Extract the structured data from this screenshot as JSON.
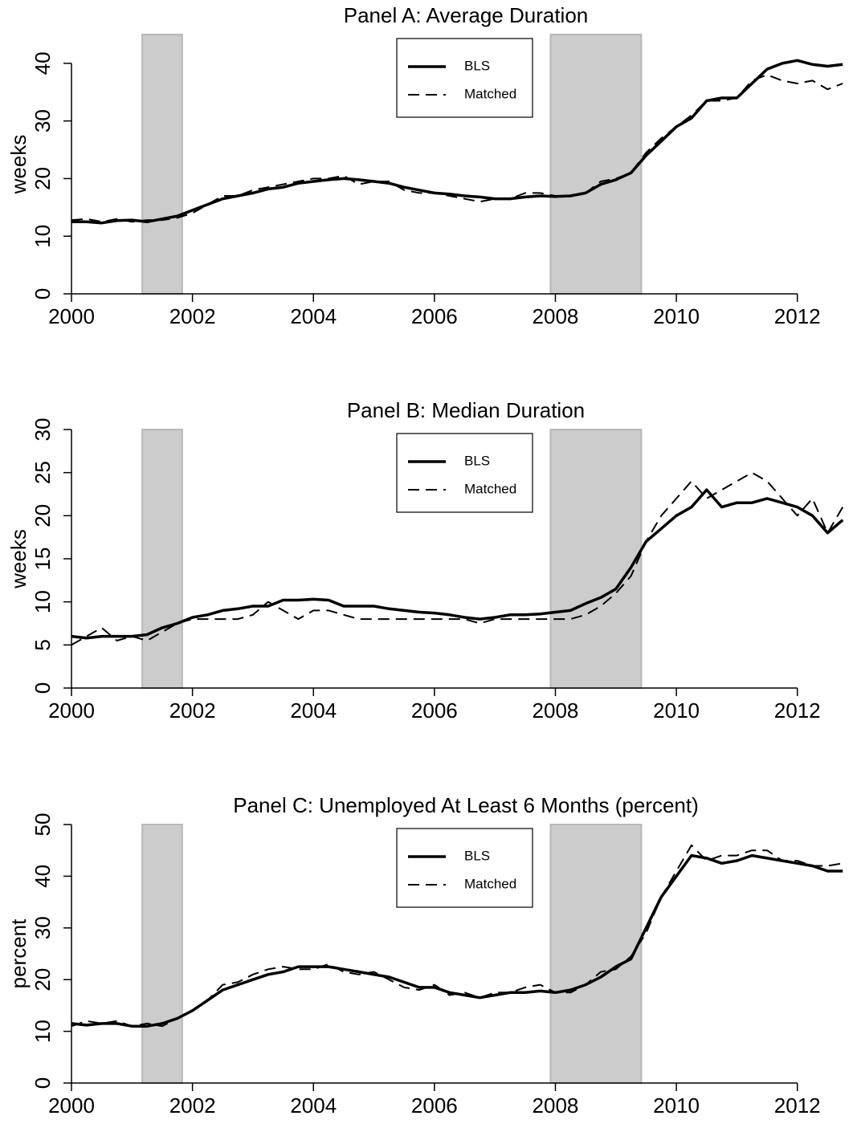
{
  "chart_data": [
    {
      "type": "line",
      "title": "Panel A:  Average Duration",
      "ylabel": "weeks",
      "x": [
        2000,
        2000.25,
        2000.5,
        2000.75,
        2001,
        2001.25,
        2001.5,
        2001.75,
        2002,
        2002.25,
        2002.5,
        2002.75,
        2003,
        2003.25,
        2003.5,
        2003.75,
        2004,
        2004.25,
        2004.5,
        2004.75,
        2005,
        2005.25,
        2005.5,
        2005.75,
        2006,
        2006.25,
        2006.5,
        2006.75,
        2007,
        2007.25,
        2007.5,
        2007.75,
        2008,
        2008.25,
        2008.5,
        2008.75,
        2009,
        2009.25,
        2009.5,
        2009.75,
        2010,
        2010.25,
        2010.5,
        2010.75,
        2011,
        2011.25,
        2011.5,
        2011.75,
        2012,
        2012.25,
        2012.5,
        2012.75
      ],
      "series": [
        {
          "name": "BLS",
          "color": "#000000",
          "dash": false,
          "values": [
            12.5,
            12.5,
            12.3,
            12.7,
            12.8,
            12.5,
            13,
            13.5,
            14.5,
            15.5,
            16.5,
            17,
            17.5,
            18.2,
            18.5,
            19.2,
            19.5,
            19.8,
            20,
            19.8,
            19.5,
            19.2,
            18.5,
            18,
            17.5,
            17.3,
            17,
            16.8,
            16.5,
            16.5,
            16.8,
            17,
            16.9,
            17,
            17.5,
            19,
            19.8,
            21,
            24,
            26.5,
            29,
            30.5,
            33.5,
            34,
            34,
            36.5,
            39,
            40,
            40.5,
            39.8,
            39.5,
            39.8
          ]
        },
        {
          "name": "Matched",
          "color": "#000000",
          "dash": true,
          "values": [
            12.8,
            13,
            12.5,
            13,
            12.5,
            12.8,
            12.8,
            13.2,
            14,
            15.5,
            17,
            17,
            18,
            18.5,
            19,
            19.5,
            20,
            20,
            20.5,
            19,
            19.5,
            19.5,
            18,
            17.5,
            17.5,
            17,
            16.5,
            16,
            16.5,
            16.5,
            17.5,
            17.5,
            17,
            17,
            17.5,
            19.5,
            20,
            21,
            24.5,
            27,
            29,
            31,
            33.5,
            33.5,
            34,
            37,
            38,
            37,
            36.5,
            37,
            35.5,
            36.5
          ]
        }
      ],
      "recessions": [
        [
          2001.17,
          2001.83
        ],
        [
          2007.92,
          2009.42
        ]
      ],
      "xlim": [
        2000,
        2012.92
      ],
      "xticks": [
        2000,
        2002,
        2004,
        2006,
        2008,
        2010,
        2012
      ],
      "ylim": [
        0,
        45
      ],
      "yticks": [
        0,
        10,
        20,
        30,
        40
      ]
    },
    {
      "type": "line",
      "title": "Panel B:  Median Duration",
      "ylabel": "weeks",
      "x": [
        2000,
        2000.25,
        2000.5,
        2000.75,
        2001,
        2001.25,
        2001.5,
        2001.75,
        2002,
        2002.25,
        2002.5,
        2002.75,
        2003,
        2003.25,
        2003.5,
        2003.75,
        2004,
        2004.25,
        2004.5,
        2004.75,
        2005,
        2005.25,
        2005.5,
        2005.75,
        2006,
        2006.25,
        2006.5,
        2006.75,
        2007,
        2007.25,
        2007.5,
        2007.75,
        2008,
        2008.25,
        2008.5,
        2008.75,
        2009,
        2009.25,
        2009.5,
        2009.75,
        2010,
        2010.25,
        2010.5,
        2010.75,
        2011,
        2011.25,
        2011.5,
        2011.75,
        2012,
        2012.25,
        2012.5,
        2012.75
      ],
      "series": [
        {
          "name": "BLS",
          "color": "#000000",
          "dash": false,
          "values": [
            6,
            5.8,
            6,
            6,
            6,
            6.2,
            7,
            7.5,
            8.2,
            8.5,
            9,
            9.2,
            9.5,
            9.5,
            10.2,
            10.2,
            10.3,
            10.2,
            9.5,
            9.5,
            9.5,
            9.2,
            9,
            8.8,
            8.7,
            8.5,
            8.2,
            8,
            8.2,
            8.5,
            8.5,
            8.6,
            8.8,
            9,
            9.8,
            10.5,
            11.5,
            14,
            17,
            18.5,
            20,
            21,
            23,
            21,
            21.5,
            21.5,
            22,
            21.5,
            21,
            20,
            18,
            19.5
          ]
        },
        {
          "name": "Matched",
          "color": "#000000",
          "dash": true,
          "values": [
            5,
            6,
            7,
            5.5,
            6,
            5.5,
            6.5,
            7.5,
            8,
            8,
            8,
            8,
            8.5,
            10,
            9,
            8,
            9,
            9,
            8.5,
            8,
            8,
            8,
            8,
            8,
            8,
            8,
            8,
            7.5,
            8,
            8,
            8,
            8,
            8,
            8,
            8.5,
            9.5,
            11,
            13,
            17,
            20,
            22,
            24,
            22,
            23,
            24,
            25,
            24,
            22,
            20,
            22,
            18,
            21
          ]
        }
      ],
      "recessions": [
        [
          2001.17,
          2001.83
        ],
        [
          2007.92,
          2009.42
        ]
      ],
      "xlim": [
        2000,
        2012.92
      ],
      "xticks": [
        2000,
        2002,
        2004,
        2006,
        2008,
        2010,
        2012
      ],
      "ylim": [
        0,
        30
      ],
      "yticks": [
        0,
        5,
        10,
        15,
        20,
        25,
        30
      ]
    },
    {
      "type": "line",
      "title": "Panel C:  Unemployed At Least 6 Months (percent)",
      "ylabel": "percent",
      "x": [
        2000,
        2000.25,
        2000.5,
        2000.75,
        2001,
        2001.25,
        2001.5,
        2001.75,
        2002,
        2002.25,
        2002.5,
        2002.75,
        2003,
        2003.25,
        2003.5,
        2003.75,
        2004,
        2004.25,
        2004.5,
        2004.75,
        2005,
        2005.25,
        2005.5,
        2005.75,
        2006,
        2006.25,
        2006.5,
        2006.75,
        2007,
        2007.25,
        2007.5,
        2007.75,
        2008,
        2008.25,
        2008.5,
        2008.75,
        2009,
        2009.25,
        2009.5,
        2009.75,
        2010,
        2010.25,
        2010.5,
        2010.75,
        2011,
        2011.25,
        2011.5,
        2011.75,
        2012,
        2012.25,
        2012.5,
        2012.75
      ],
      "series": [
        {
          "name": "BLS",
          "color": "#000000",
          "dash": false,
          "values": [
            11.5,
            11.2,
            11.5,
            11.5,
            11,
            11,
            11.5,
            12.5,
            14,
            16,
            18,
            19,
            20,
            21,
            21.5,
            22.5,
            22.5,
            22.5,
            22,
            21.5,
            21,
            20.5,
            19.5,
            18.5,
            18.5,
            17.5,
            17,
            16.5,
            17,
            17.5,
            17.5,
            17.8,
            17.5,
            18,
            19,
            20.5,
            22.5,
            24,
            30,
            36,
            40,
            44,
            43.5,
            42.5,
            43,
            44,
            43.5,
            43,
            42.5,
            42,
            41,
            41
          ]
        },
        {
          "name": "Matched",
          "color": "#000000",
          "dash": true,
          "values": [
            11,
            12,
            11.5,
            12,
            11,
            11.5,
            11,
            12.5,
            14,
            16,
            19,
            19.5,
            21,
            22,
            22.5,
            22,
            22,
            23,
            21.5,
            21,
            21.5,
            20,
            18.5,
            18,
            19,
            17,
            17.5,
            16.5,
            17.5,
            17.5,
            18.5,
            19,
            17.5,
            17.5,
            19,
            21.5,
            22,
            24.5,
            29,
            36,
            41,
            46,
            43,
            44,
            44,
            45,
            45,
            43,
            43,
            42,
            42,
            42.5
          ]
        }
      ],
      "recessions": [
        [
          2001.17,
          2001.83
        ],
        [
          2007.92,
          2009.42
        ]
      ],
      "xlim": [
        2000,
        2012.92
      ],
      "xticks": [
        2000,
        2002,
        2004,
        2006,
        2008,
        2010,
        2012
      ],
      "ylim": [
        0,
        50
      ],
      "yticks": [
        0,
        10,
        20,
        30,
        40,
        50
      ]
    }
  ]
}
